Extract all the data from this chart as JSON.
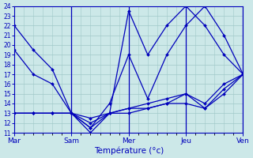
{
  "title": "Température (°c)",
  "bg_color": "#cce8e8",
  "line_color": "#0000bb",
  "grid_color": "#a0c8c8",
  "axis_color": "#0000bb",
  "text_color": "#0000bb",
  "ylim": [
    11,
    24
  ],
  "yticks": [
    11,
    12,
    13,
    14,
    15,
    16,
    17,
    18,
    19,
    20,
    21,
    22,
    23,
    24
  ],
  "xlim": [
    0,
    24
  ],
  "xtick_pos": [
    0,
    6,
    12,
    18,
    24
  ],
  "xtick_labels": [
    "Mar",
    "Sam",
    "Mer",
    "Jeu",
    "Ven"
  ],
  "vlines": [
    6,
    12,
    18,
    24
  ],
  "lines": [
    {
      "x": [
        0,
        2,
        4,
        6,
        8,
        10,
        12,
        14,
        16,
        18,
        20,
        22,
        24
      ],
      "y": [
        22,
        19.5,
        17.5,
        13,
        11,
        13,
        23.5,
        19,
        22,
        24,
        22,
        19,
        17
      ]
    },
    {
      "x": [
        0,
        2,
        4,
        6,
        8,
        10,
        12,
        14,
        16,
        18,
        20,
        22,
        24
      ],
      "y": [
        19.5,
        17,
        16,
        13,
        11.5,
        14,
        19,
        14.5,
        19,
        22,
        24,
        21,
        17
      ]
    },
    {
      "x": [
        0,
        2,
        4,
        6,
        8,
        10,
        12,
        14,
        16,
        18,
        20,
        22,
        24
      ],
      "y": [
        13,
        13,
        13,
        13,
        11.5,
        13,
        13.5,
        13.5,
        14,
        15,
        13.5,
        15.5,
        17
      ]
    },
    {
      "x": [
        0,
        2,
        4,
        6,
        8,
        10,
        12,
        14,
        16,
        18,
        20,
        22,
        24
      ],
      "y": [
        13,
        13,
        13,
        13,
        12,
        13,
        13,
        13.5,
        14,
        14,
        13.5,
        15,
        17
      ]
    },
    {
      "x": [
        0,
        2,
        4,
        6,
        8,
        10,
        12,
        14,
        16,
        18,
        20,
        22,
        24
      ],
      "y": [
        13,
        13,
        13,
        13,
        12.5,
        13,
        13.5,
        14,
        14.5,
        15,
        14,
        16,
        17
      ]
    }
  ]
}
